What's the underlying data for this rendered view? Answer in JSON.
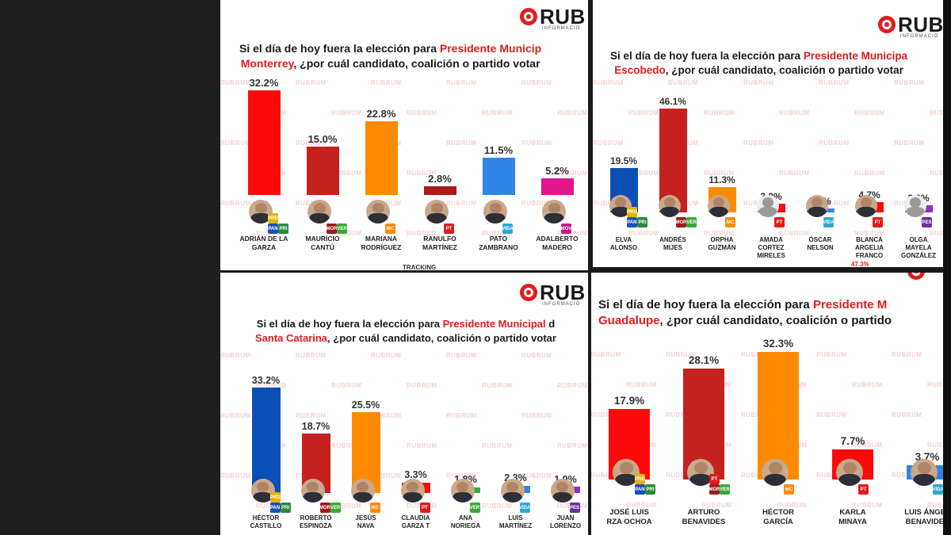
{
  "brand": {
    "logo_text": "RUB",
    "logo_sub": "INFORMACIÓ",
    "watermark": "RUBRUM"
  },
  "chart_data": [
    {
      "type": "bar",
      "title_prefix": "Si el día de hoy fuera la elección para ",
      "title_highlight": "Presidente Municip",
      "title_line2_highlight": "Monterrey",
      "title_line2_rest": ", ¿por cuál candidato, coalición o partido votar",
      "categories": [
        "ADRIÁN DE LA\nGARZA",
        "MAURICIO\nCANTÚ",
        "MARIANA\nRODRÍGUEZ",
        "RANULFO\nMARTÍNEZ",
        "PATO\nZAMBRANO",
        "ADALBERTO\nMADERO"
      ],
      "labels": [
        "32.2%",
        "15.0%",
        "22.8%",
        "2.8%",
        "11.5%",
        "5.2%"
      ],
      "values": [
        32.2,
        15.0,
        22.8,
        2.8,
        11.5,
        5.2
      ],
      "colors": [
        "#ff0a0a",
        "#c4211f",
        "#ff8a00",
        "#a81c1c",
        "#2f86e6",
        "#e0168c"
      ],
      "badges": [
        [
          "PAN",
          "PRI",
          "PRD"
        ],
        [
          "MOR",
          "VER"
        ],
        [
          "MC"
        ],
        [
          "PT"
        ],
        [
          "VIDA"
        ],
        [
          "MOV"
        ]
      ],
      "footer": "TRACKING"
    },
    {
      "type": "bar",
      "title_prefix": "Si el día de hoy fuera la elección para ",
      "title_highlight": "Presidente Municipa",
      "title_line2_highlight": "Escobedo",
      "title_line2_rest": ", ¿por cuál candidato, coalición o partido votar",
      "categories": [
        "ELVA\nALONSO",
        "ANDRÉS\nMIJES",
        "ORPHA\nGUZMÁN",
        "AMADA\nCORTEZ\nMIRELES",
        "ÓSCAR\nNELSON",
        "BLANCA\nARGELIA\nFRANCO",
        "OLGA\nMAYELA\nGONZÁLEZ"
      ],
      "labels": [
        "19.5%",
        "46.1%",
        "11.3%",
        "3.8%",
        "1.9%",
        "4.7%",
        "3.0%"
      ],
      "values": [
        19.5,
        46.1,
        11.3,
        3.8,
        1.9,
        4.7,
        3.0
      ],
      "colors": [
        "#0a4fb5",
        "#c4211f",
        "#ff8a00",
        "#ff0a0a",
        "#2f86e6",
        "#ff0a0a",
        "#8b2fc9"
      ],
      "badges": [
        [
          "PAN",
          "PRI",
          "PRD"
        ],
        [
          "MOR",
          "VER"
        ],
        [
          "MC"
        ],
        [
          "PT"
        ],
        [
          "VIDA"
        ],
        [
          "PT"
        ],
        [
          "PES"
        ]
      ],
      "extra_label": "47.3%"
    },
    {
      "type": "bar",
      "title_prefix": "Si el día de hoy fuera la elección para ",
      "title_highlight": "Presidente Municipal",
      "title_tail": " d",
      "title_line2_highlight": "Santa Catarina",
      "title_line2_rest": ", ¿por cuál candidato, coalición o partido votar",
      "categories": [
        "HÉCTOR\nCASTILLO",
        "ROBERTO\nESPINOZA",
        "JESÚS\nNAVA",
        "CLAUDIA\nGARZA T",
        "ANA\nNORIEGA",
        "LUIS\nMARTÍNEZ",
        "JUAN\nLORENZO"
      ],
      "labels": [
        "33.2%",
        "18.7%",
        "25.5%",
        "3.3%",
        "1.8%",
        "2.3%",
        "1.9%"
      ],
      "values": [
        33.2,
        18.7,
        25.5,
        3.3,
        1.8,
        2.3,
        1.9
      ],
      "colors": [
        "#0a4fb5",
        "#c4211f",
        "#ff8a00",
        "#ff0a0a",
        "#3aa83a",
        "#2f86e6",
        "#8b2fc9"
      ],
      "badges": [
        [
          "PAN",
          "PRI",
          "PRD"
        ],
        [
          "MOR",
          "VER"
        ],
        [
          "MC"
        ],
        [
          "PT"
        ],
        [
          "VER"
        ],
        [
          "VIDA"
        ],
        [
          "PES"
        ]
      ]
    },
    {
      "type": "bar",
      "title_prefix": "Si el día de hoy fuera la elección para ",
      "title_highlight": "Presidente M",
      "title_line2_highlight": "Guadalupe",
      "title_line2_rest": ", ¿por cuál candidato, coalición o partido",
      "categories": [
        "JOSÉ LUIS\nRZA OCHOA",
        "ARTURO\nBENAVIDES",
        "HÉCTOR\nGARCÍA",
        "KARLA\nMINAYA",
        "LUIS ÁNGEL\nBENAVIDES"
      ],
      "labels": [
        "17.9%",
        "28.1%",
        "32.3%",
        "7.7%",
        "3.7%"
      ],
      "values": [
        17.9,
        28.1,
        32.3,
        7.7,
        3.7
      ],
      "colors": [
        "#ff0a0a",
        "#c4211f",
        "#ff8a00",
        "#ff0a0a",
        "#2f86e6"
      ],
      "badges": [
        [
          "PAN",
          "PRI",
          "PRD"
        ],
        [
          "MOR",
          "VER",
          "PT"
        ],
        [
          "MC"
        ],
        [
          "PT"
        ],
        [
          "VIDA"
        ]
      ]
    }
  ]
}
